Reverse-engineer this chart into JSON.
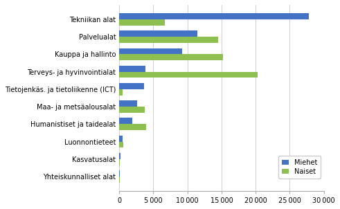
{
  "categories": [
    "Tekniikan alat",
    "Palvelualat",
    "Kauppa ja hallinto",
    "Terveys- ja hyvinvointialat",
    "Tietojenkäs. ja tietoliikenne (ICT)",
    "Maa- ja metsäalousalat",
    "Humanistiset ja taidealat",
    "Luonnontieteet",
    "Kasvatusalat",
    "Yhteiskunnalliset alat"
  ],
  "miehet": [
    27800,
    11500,
    9200,
    3800,
    3600,
    2600,
    1900,
    450,
    200,
    50
  ],
  "naiset": [
    6700,
    14500,
    15200,
    20300,
    500,
    3700,
    3900,
    600,
    50,
    50
  ],
  "color_miehet": "#4472C4",
  "color_naiset": "#8DC050",
  "legend_labels": [
    "Miehet",
    "Naiset"
  ],
  "xlim": [
    0,
    30000
  ],
  "xticks": [
    0,
    5000,
    10000,
    15000,
    20000,
    25000,
    30000
  ],
  "background_color": "#ffffff",
  "bar_height": 0.35,
  "grid_color": "#c8c8c8"
}
